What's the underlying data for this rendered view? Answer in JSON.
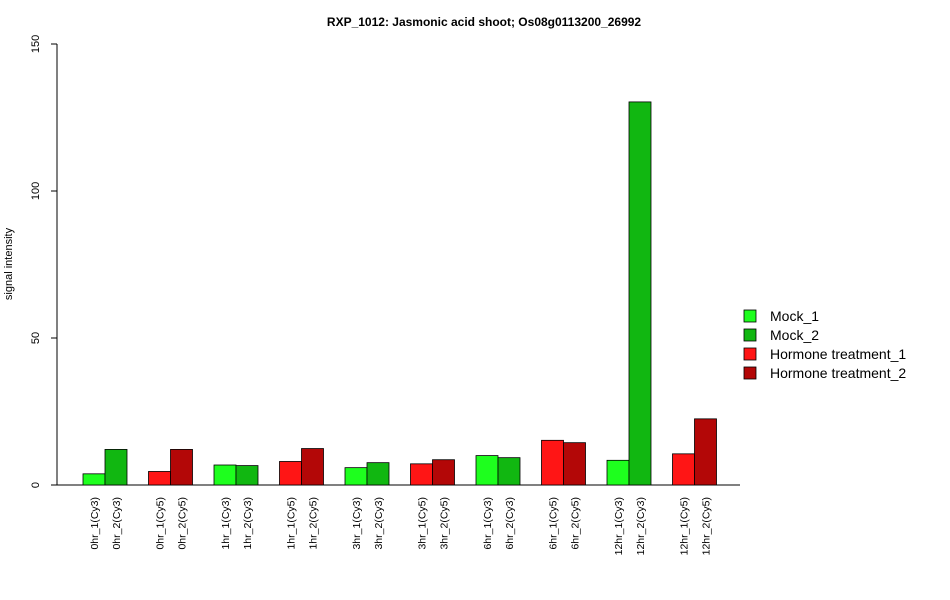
{
  "chart_data": {
    "type": "bar",
    "title": "RXP_1012: Jasmonic acid shoot; Os08g0113200_26992",
    "ylabel": "signal intensity",
    "xlabel": "",
    "ylim": [
      0,
      150
    ],
    "yticks": [
      0,
      50,
      100,
      150
    ],
    "legend_position": "right",
    "legend": [
      {
        "name": "Mock_1",
        "color": "#1eff1e"
      },
      {
        "name": "Mock_2",
        "color": "#11b711"
      },
      {
        "name": "Hormone treatment_1",
        "color": "#ff1515"
      },
      {
        "name": "Hormone treatment_2",
        "color": "#b30707"
      }
    ],
    "groups": [
      {
        "bars": [
          {
            "label": "0hr_1(Cy3)",
            "value": 3.8,
            "series": 0
          },
          {
            "label": "0hr_2(Cy3)",
            "value": 12.1,
            "series": 1
          }
        ]
      },
      {
        "bars": [
          {
            "label": "0hr_1(Cy5)",
            "value": 4.6,
            "series": 2
          },
          {
            "label": "0hr_2(Cy5)",
            "value": 12.1,
            "series": 3
          }
        ]
      },
      {
        "bars": [
          {
            "label": "1hr_1(Cy3)",
            "value": 6.8,
            "series": 0
          },
          {
            "label": "1hr_2(Cy3)",
            "value": 6.6,
            "series": 1
          }
        ]
      },
      {
        "bars": [
          {
            "label": "1hr_1(Cy5)",
            "value": 8.0,
            "series": 2
          },
          {
            "label": "1hr_2(Cy5)",
            "value": 12.4,
            "series": 3
          }
        ]
      },
      {
        "bars": [
          {
            "label": "3hr_1(Cy3)",
            "value": 5.9,
            "series": 0
          },
          {
            "label": "3hr_2(Cy3)",
            "value": 7.6,
            "series": 1
          }
        ]
      },
      {
        "bars": [
          {
            "label": "3hr_1(Cy5)",
            "value": 7.2,
            "series": 2
          },
          {
            "label": "3hr_2(Cy5)",
            "value": 8.6,
            "series": 3
          }
        ]
      },
      {
        "bars": [
          {
            "label": "6hr_1(Cy3)",
            "value": 10.0,
            "series": 0
          },
          {
            "label": "6hr_2(Cy3)",
            "value": 9.3,
            "series": 1
          }
        ]
      },
      {
        "bars": [
          {
            "label": "6hr_1(Cy5)",
            "value": 15.2,
            "series": 2
          },
          {
            "label": "6hr_2(Cy5)",
            "value": 14.4,
            "series": 3
          }
        ]
      },
      {
        "bars": [
          {
            "label": "12hr_1(Cy3)",
            "value": 8.4,
            "series": 0
          },
          {
            "label": "12hr_2(Cy3)",
            "value": 130.3,
            "series": 1
          }
        ]
      },
      {
        "bars": [
          {
            "label": "12hr_1(Cy5)",
            "value": 10.6,
            "series": 2
          },
          {
            "label": "12hr_2(Cy5)",
            "value": 22.5,
            "series": 3
          }
        ]
      }
    ]
  }
}
